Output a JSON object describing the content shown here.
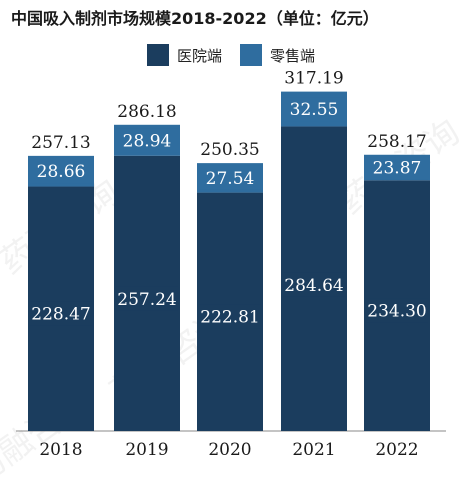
{
  "title": "中国吸入制剂市场规模2018-2022（单位：亿元）",
  "watermark": "药融咨询",
  "colors": {
    "hospital": "#1b3d5e",
    "retail": "#2f6d9f",
    "axis": "#888888"
  },
  "chart_data": {
    "type": "bar",
    "stacked": true,
    "categories": [
      "2018",
      "2019",
      "2020",
      "2021",
      "2022"
    ],
    "series": [
      {
        "name": "医院端",
        "values": [
          228.47,
          257.24,
          222.81,
          284.64,
          234.3
        ],
        "labels": [
          "228.47",
          "257.24",
          "222.81",
          "284.64",
          "234.30"
        ]
      },
      {
        "name": "零售端",
        "values": [
          28.66,
          28.94,
          27.54,
          32.55,
          23.87
        ],
        "labels": [
          "28.66",
          "28.94",
          "27.54",
          "32.55",
          "23.87"
        ]
      }
    ],
    "totals": [
      "257.13",
      "286.18",
      "250.35",
      "317.19",
      "258.17"
    ],
    "legend_position": "top",
    "grid": false
  }
}
